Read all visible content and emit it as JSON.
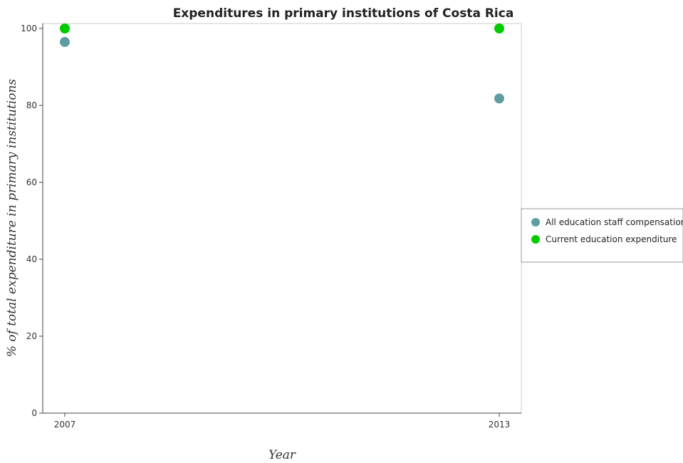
{
  "chart_data": {
    "type": "scatter",
    "title": "Expenditures in primary institutions of Costa Rica",
    "xlabel": "Year",
    "ylabel": "% of total expenditure in primary institutions",
    "categories": [
      "2007",
      "2013"
    ],
    "ylim": [
      0,
      100
    ],
    "yticks": [
      0,
      20,
      40,
      60,
      80,
      100
    ],
    "grid": false,
    "legend_position": "right",
    "series": [
      {
        "name": "All education staff compensation",
        "color": "#5f9ea0",
        "values": [
          96.5,
          81.8
        ]
      },
      {
        "name": "Current education expenditure",
        "color": "#00cc00",
        "values": [
          100,
          100
        ]
      }
    ]
  }
}
